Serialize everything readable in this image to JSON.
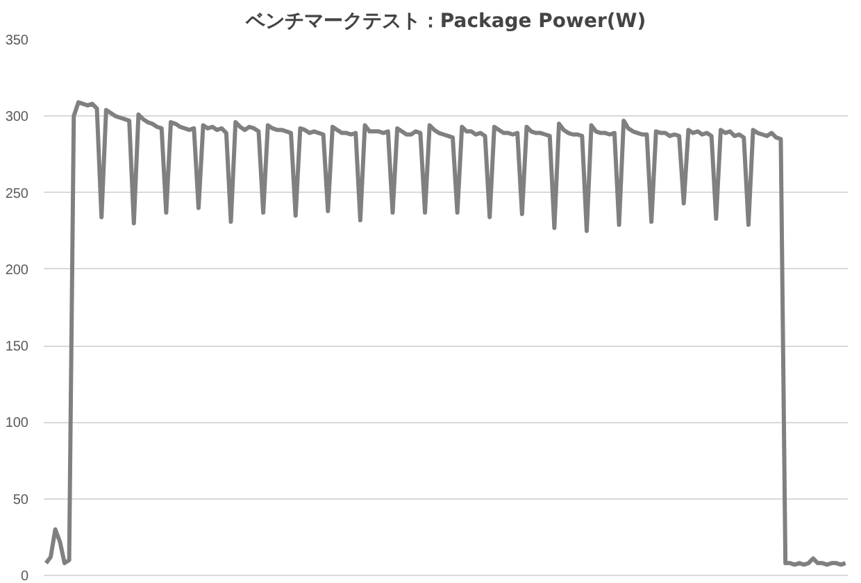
{
  "chart_data": {
    "type": "line",
    "title": "ベンチマークテスト：Package Power(W)",
    "categories": [
      null,
      null,
      null,
      null,
      null,
      null,
      null,
      null,
      null,
      null,
      null,
      null,
      null,
      null,
      null,
      null,
      null,
      null,
      null,
      null,
      null,
      null,
      null,
      null,
      null,
      null,
      null,
      null,
      null,
      null,
      null,
      null,
      null,
      null,
      null,
      null,
      null,
      null,
      null,
      null,
      null,
      null,
      null,
      null,
      null,
      null,
      null,
      null,
      null,
      null,
      null,
      null,
      null,
      null,
      null,
      null,
      null,
      null,
      null,
      null,
      null,
      null,
      null,
      null,
      null,
      null,
      null,
      null,
      null,
      null,
      null,
      null,
      null,
      null,
      null,
      null,
      null,
      null,
      null,
      null,
      null,
      null,
      null,
      null,
      null,
      null,
      null,
      null,
      null,
      null,
      null,
      null,
      null,
      null,
      null,
      null,
      null,
      null,
      null,
      null,
      null,
      null,
      null,
      null,
      null,
      null,
      null,
      null,
      null,
      null,
      null,
      null,
      null,
      null,
      null,
      null,
      null,
      null,
      null,
      null,
      null,
      null,
      null,
      null,
      null,
      null,
      null,
      null,
      null,
      null,
      null,
      null,
      null,
      null,
      null,
      null,
      null,
      null,
      null,
      null,
      null,
      null,
      null,
      null,
      null,
      null,
      null,
      null,
      null,
      null,
      null,
      null,
      null,
      null,
      null,
      null,
      null,
      null,
      null,
      null,
      null,
      null,
      null,
      null,
      null,
      null,
      null,
      null,
      null,
      null,
      null,
      null,
      null,
      null
    ],
    "series": [
      {
        "color": "#808080",
        "values": [
          8,
          12,
          30,
          22,
          8,
          10,
          300,
          309,
          308,
          307,
          308,
          305,
          234,
          304,
          302,
          300,
          299,
          298,
          297,
          230,
          301,
          298,
          296,
          295,
          293,
          292,
          237,
          296,
          295,
          293,
          292,
          291,
          292,
          240,
          294,
          292,
          293,
          291,
          292,
          289,
          231,
          296,
          293,
          291,
          293,
          292,
          290,
          237,
          294,
          292,
          291,
          291,
          290,
          289,
          235,
          292,
          291,
          289,
          290,
          289,
          288,
          238,
          293,
          291,
          289,
          289,
          288,
          289,
          232,
          294,
          290,
          290,
          290,
          289,
          290,
          237,
          292,
          290,
          288,
          288,
          290,
          289,
          237,
          294,
          291,
          289,
          288,
          287,
          286,
          237,
          293,
          290,
          290,
          288,
          289,
          287,
          234,
          293,
          291,
          289,
          289,
          288,
          289,
          236,
          293,
          290,
          289,
          289,
          288,
          287,
          227,
          295,
          291,
          289,
          288,
          288,
          287,
          225,
          294,
          290,
          289,
          289,
          288,
          289,
          229,
          297,
          292,
          290,
          289,
          288,
          288,
          231,
          290,
          289,
          289,
          287,
          288,
          287,
          243,
          291,
          289,
          290,
          288,
          289,
          287,
          233,
          291,
          289,
          290,
          287,
          288,
          286,
          229,
          291,
          289,
          288,
          287,
          289,
          286,
          285,
          8,
          8,
          7,
          8,
          7,
          8,
          11,
          8,
          8,
          7,
          8,
          8,
          7,
          8
        ]
      }
    ],
    "ylim": [
      0,
      350
    ],
    "yticks": [
      0,
      50,
      100,
      150,
      200,
      250,
      300,
      350
    ],
    "grid": "y",
    "tick_labels": "y",
    "line_style": "solid",
    "marker": "none"
  }
}
